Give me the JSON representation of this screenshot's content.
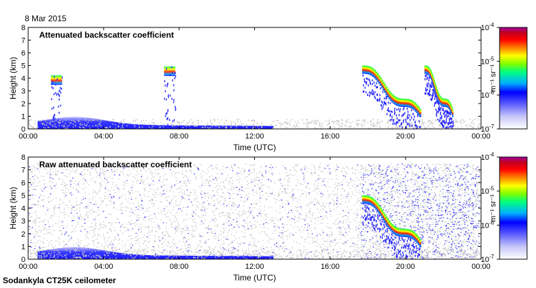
{
  "header": {
    "date": "8 Mar 2015",
    "instrument": "Sodankyla CT25K ceilometer"
  },
  "chart_data": [
    {
      "type": "heatmap",
      "title": "Attenuated backscatter coefficient",
      "xlabel": "Time (UTC)",
      "ylabel": "Height (km)",
      "xlim_hours": [
        0,
        24
      ],
      "ylim": [
        0,
        8
      ],
      "xticks": [
        "00:00",
        "04:00",
        "08:00",
        "12:00",
        "16:00",
        "20:00",
        "00:00"
      ],
      "yticks": [
        "0",
        "1",
        "2",
        "3",
        "4",
        "5",
        "6",
        "7",
        "8"
      ],
      "colorbar": {
        "scale": "log",
        "range": [
          1e-07,
          0.0001
        ],
        "ticks": [
          "10^-7",
          "10^-6",
          "10^-5",
          "10^-4"
        ],
        "label": "m^-1 sr^-1",
        "colors": [
          "#ffffff",
          "#d0d0f0",
          "#6060ff",
          "#0000ff",
          "#00c0ff",
          "#00ff00",
          "#ffff00",
          "#ff8000",
          "#ff0000",
          "#c00000",
          "#a000a0"
        ]
      },
      "features": [
        {
          "name": "boundary layer aerosol",
          "t_start": 0.5,
          "t_end": 13.0,
          "h_top": 0.9,
          "level": "low"
        },
        {
          "name": "mid-level cloud patch",
          "t_start": 1.2,
          "t_end": 1.8,
          "h_top": 4.3,
          "level": "high"
        },
        {
          "name": "mid-level cloud patch",
          "t_start": 7.2,
          "t_end": 7.8,
          "h_top": 5.0,
          "level": "high"
        },
        {
          "name": "descending cloud base",
          "t_start": 17.7,
          "t_end": 20.8,
          "h_top": 5.0,
          "level": "high"
        },
        {
          "name": "cloud layer",
          "t_start": 21.0,
          "t_end": 22.5,
          "h_top": 5.0,
          "level": "high"
        }
      ]
    },
    {
      "type": "heatmap",
      "title": "Raw attenuated backscatter coefficient",
      "xlabel": "Time (UTC)",
      "ylabel": "Height (km)",
      "xlim_hours": [
        0,
        24
      ],
      "ylim": [
        0,
        8
      ],
      "xticks": [
        "00:00",
        "04:00",
        "08:00",
        "12:00",
        "16:00",
        "20:00",
        "00:00"
      ],
      "yticks": [
        "0",
        "1",
        "2",
        "3",
        "4",
        "5",
        "6",
        "7",
        "8"
      ],
      "colorbar": {
        "scale": "log",
        "range": [
          1e-07,
          0.0001
        ],
        "ticks": [
          "10^-7",
          "10^-6",
          "10^-5",
          "10^-4"
        ],
        "label": "m^-1 sr^-1",
        "colors": [
          "#ffffff",
          "#d0d0f0",
          "#6060ff",
          "#0000ff",
          "#00c0ff",
          "#00ff00",
          "#ffff00",
          "#ff8000",
          "#ff0000",
          "#c00000",
          "#a000a0"
        ]
      },
      "features": [
        {
          "name": "noise background",
          "t_start": 0.0,
          "t_end": 17.6,
          "h_top": 7.5,
          "level": "noise"
        },
        {
          "name": "dense noise region",
          "t_start": 17.6,
          "t_end": 23.9,
          "h_top": 7.5,
          "level": "noise-dense"
        },
        {
          "name": "boundary layer aerosol",
          "t_start": 0.5,
          "t_end": 13.0,
          "h_top": 0.9,
          "level": "low"
        },
        {
          "name": "descending cloud base",
          "t_start": 17.7,
          "t_end": 20.8,
          "h_top": 5.0,
          "level": "high"
        }
      ]
    }
  ]
}
